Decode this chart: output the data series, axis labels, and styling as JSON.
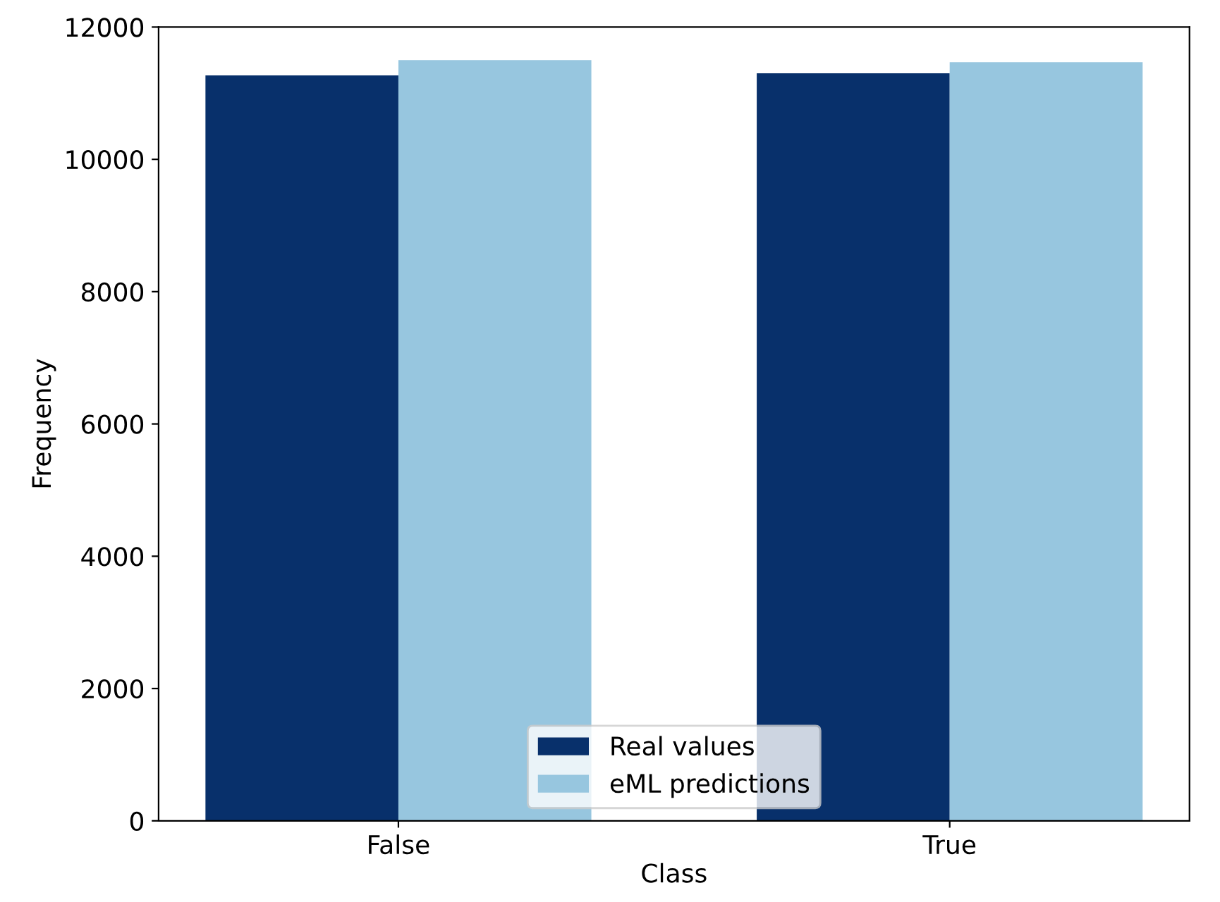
{
  "chart_data": {
    "type": "bar",
    "xlabel": "Class",
    "ylabel": "Frequency",
    "categories": [
      "False",
      "True"
    ],
    "series": [
      {
        "name": "Real values",
        "color": "#08306b",
        "values": [
          11270,
          11300
        ]
      },
      {
        "name": "eML predictions",
        "color": "#97c6df",
        "values": [
          11500,
          11470
        ]
      }
    ],
    "ylim": [
      0,
      12000
    ],
    "yticks": [
      0,
      2000,
      4000,
      6000,
      8000,
      10000,
      12000
    ],
    "grid": false,
    "legend": "bottom"
  }
}
